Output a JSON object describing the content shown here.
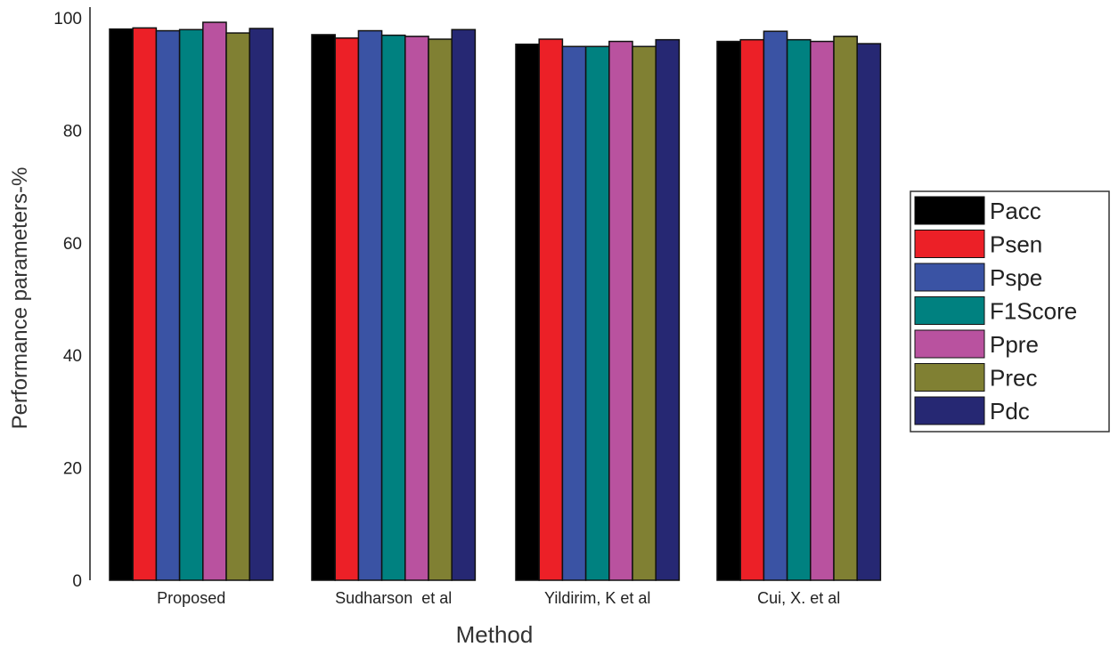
{
  "chart_data": {
    "type": "bar",
    "title": "",
    "xlabel": "Method",
    "ylabel": "Performance parameters-%",
    "ylim": [
      0,
      100
    ],
    "yticks": [
      "0",
      "20",
      "40",
      "60",
      "80",
      "100"
    ],
    "categories": [
      "Proposed",
      "Sudharson  et al",
      "Yildirim, K et al",
      "Cui, X. et al"
    ],
    "legend_position": "right",
    "series": [
      {
        "name": "Pacc",
        "color": "#000000",
        "values": [
          98.0,
          97.0,
          95.3,
          95.8
        ]
      },
      {
        "name": "Psen",
        "color": "#ec2027",
        "values": [
          98.2,
          96.4,
          96.2,
          96.1
        ]
      },
      {
        "name": "Pspe",
        "color": "#3a53a4",
        "values": [
          97.7,
          97.7,
          94.9,
          97.6
        ]
      },
      {
        "name": "F1Score",
        "color": "#008180",
        "values": [
          97.9,
          96.9,
          94.9,
          96.1
        ]
      },
      {
        "name": "Ppre",
        "color": "#b9529f",
        "values": [
          99.2,
          96.7,
          95.8,
          95.8
        ]
      },
      {
        "name": "Prec",
        "color": "#808033",
        "values": [
          97.3,
          96.2,
          94.9,
          96.7
        ]
      },
      {
        "name": "Pdc",
        "color": "#262873",
        "values": [
          98.1,
          97.9,
          96.1,
          95.4
        ]
      }
    ]
  }
}
